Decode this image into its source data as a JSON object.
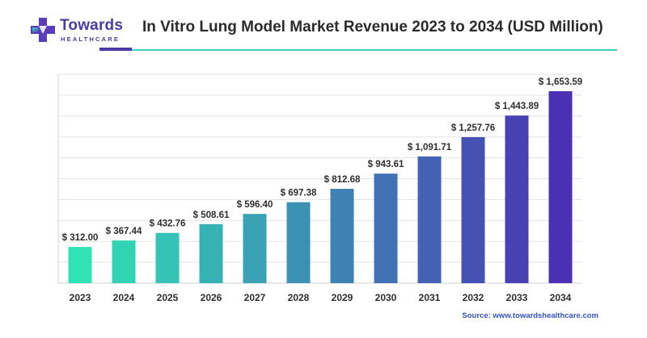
{
  "logo": {
    "name": "Towards",
    "sub": "HEALTHCARE"
  },
  "title": "In Vitro Lung Model Market Revenue 2023 to 2034 (USD Million)",
  "source": "Source: www.towardshealthcare.com",
  "colors": {
    "brand": "#4a3aa8",
    "accent_line": "#3fd0bf",
    "bar_start": "#2fe3b5",
    "bar_end": "#4a31b3"
  },
  "chart_data": {
    "type": "bar",
    "title": "In Vitro Lung Model Market Revenue 2023 to 2034 (USD Million)",
    "xlabel": "",
    "ylabel": "",
    "categories": [
      "2023",
      "2024",
      "2025",
      "2026",
      "2027",
      "2028",
      "2029",
      "2030",
      "2031",
      "2032",
      "2033",
      "2034"
    ],
    "values": [
      312.0,
      367.44,
      432.76,
      508.61,
      596.4,
      697.38,
      812.68,
      943.61,
      1091.71,
      1257.76,
      1443.89,
      1653.59
    ],
    "data_labels": [
      "$ 312.00",
      "$ 367.44",
      "$ 432.76",
      "$ 508.61",
      "$ 596.40",
      "$ 697.38",
      "$ 812.68",
      "$ 943.61",
      "$ 1,091.71",
      "$ 1,257.76",
      "$ 1,443.89",
      "$ 1,653.59"
    ],
    "ylim": [
      0,
      1800
    ],
    "grid": true,
    "legend": "none"
  }
}
